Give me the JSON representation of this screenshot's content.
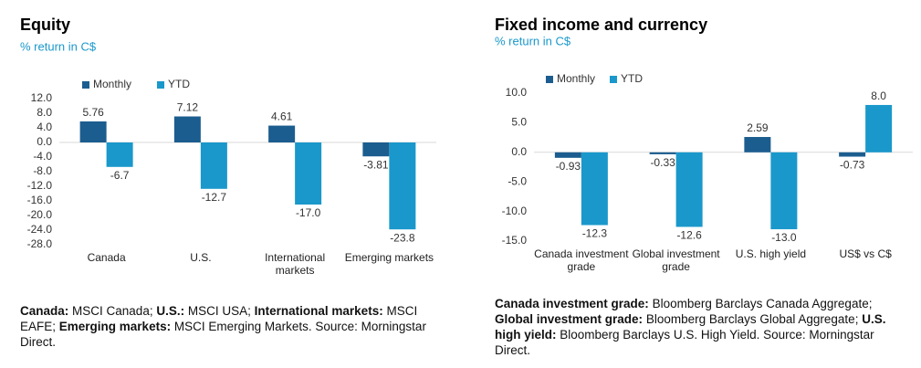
{
  "chart_data": [
    {
      "type": "bar",
      "title": "Equity",
      "subtitle": "% return in C$",
      "categories": [
        "Canada",
        "U.S.",
        "International markets",
        "Emerging markets"
      ],
      "series": [
        {
          "name": "Monthly",
          "color": "#1c5d8f",
          "values": [
            5.76,
            7.12,
            4.61,
            -3.81
          ]
        },
        {
          "name": "YTD",
          "color": "#1a98cb",
          "values": [
            -6.7,
            -12.7,
            -17.0,
            -23.8
          ],
          "value_labels": [
            "-6.7",
            "-12.7",
            "-17.0",
            "-23.8"
          ]
        }
      ],
      "ylim": [
        -28,
        12
      ],
      "yticks": [
        {
          "value": 12,
          "label": "12.0"
        },
        {
          "value": 8,
          "label": "8.0"
        },
        {
          "value": 4,
          "label": "4.0"
        },
        {
          "value": 0,
          "label": "0.0"
        },
        {
          "value": -4,
          "label": "-4.0"
        },
        {
          "value": -8,
          "label": "-8.0"
        },
        {
          "value": -12,
          "label": "-12.0"
        },
        {
          "value": -16,
          "label": "-16.0"
        },
        {
          "value": -20,
          "label": "-20.0"
        },
        {
          "value": -24,
          "label": "-24.0"
        },
        {
          "value": -28,
          "label": "-28.0"
        }
      ],
      "grid": false,
      "footnote": [
        {
          "term": "Canada:",
          "text": "MSCI Canada;"
        },
        {
          "term": "U.S.:",
          "text": "MSCI USA;"
        },
        {
          "term": "International markets:",
          "text": "MSCI EAFE;"
        },
        {
          "term": "Emerging markets:",
          "text": "MSCI Emerging Markets. Source: Morningstar Direct."
        }
      ]
    },
    {
      "type": "bar",
      "title": "Fixed income and currency",
      "subtitle": "% return in C$",
      "categories": [
        "Canada investment grade",
        "Global investment grade",
        "U.S. high yield",
        "US$ vs C$"
      ],
      "series": [
        {
          "name": "Monthly",
          "color": "#1c5d8f",
          "values": [
            -0.93,
            -0.33,
            2.59,
            -0.73
          ]
        },
        {
          "name": "YTD",
          "color": "#1a98cb",
          "values": [
            -12.3,
            -12.6,
            -13.0,
            8.0
          ],
          "value_labels": [
            "-12.3",
            "-12.6",
            "-13.0",
            "8.0"
          ]
        }
      ],
      "ylim": [
        -15,
        10
      ],
      "yticks": [
        {
          "value": 10,
          "label": "10.0"
        },
        {
          "value": 5,
          "label": "5.0"
        },
        {
          "value": 0,
          "label": "0.0"
        },
        {
          "value": -5,
          "label": "-5.0"
        },
        {
          "value": -10,
          "label": "-10.0"
        },
        {
          "value": -15,
          "label": "-15.0"
        }
      ],
      "grid": false,
      "footnote": [
        {
          "term": "Canada investment grade:",
          "text": "Bloomberg Barclays Canada Aggregate;"
        },
        {
          "term": "Global investment grade:",
          "text": "Bloomberg Barclays Global Aggregate;"
        },
        {
          "term": "U.S. high yield:",
          "text": "Bloomberg Barclays U.S. High Yield. Source: Morningstar Direct."
        }
      ]
    }
  ]
}
